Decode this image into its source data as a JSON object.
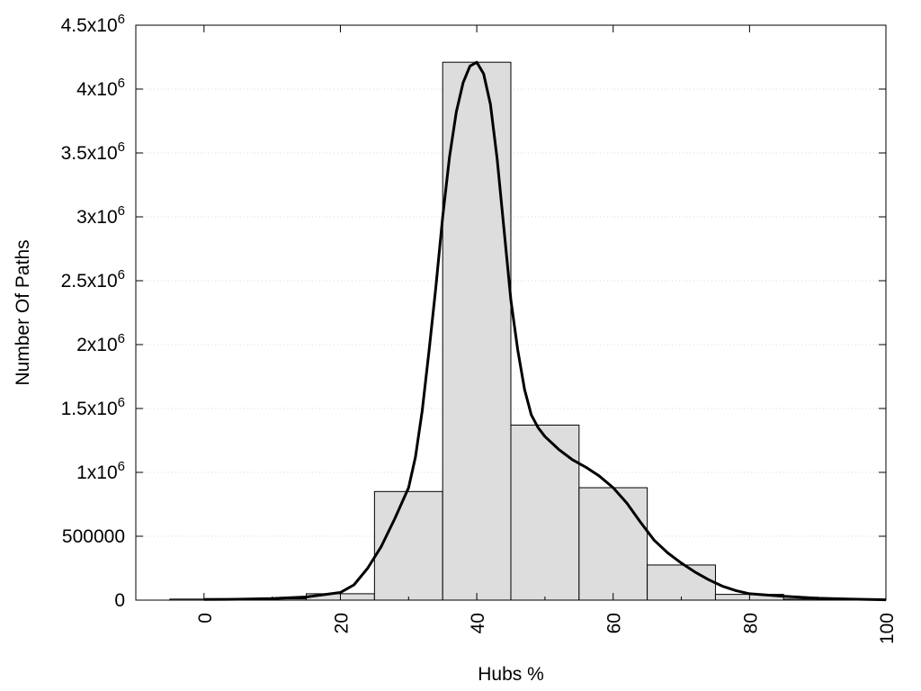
{
  "chart_data": {
    "type": "bar",
    "xlabel": "Hubs %",
    "ylabel": "Number Of Paths",
    "xlim": [
      -10,
      100
    ],
    "ylim": [
      0,
      4500000
    ],
    "grid": "horizontal dotted",
    "legend": "none",
    "x_ticks": [
      {
        "value": 0,
        "label": "0"
      },
      {
        "value": 20,
        "label": "20"
      },
      {
        "value": 40,
        "label": "40"
      },
      {
        "value": 60,
        "label": "60"
      },
      {
        "value": 80,
        "label": "80"
      },
      {
        "value": 100,
        "label": "100"
      }
    ],
    "y_ticks": [
      {
        "value": 0,
        "mantissa": "0",
        "exp": ""
      },
      {
        "value": 500000,
        "mantissa": "500000",
        "exp": ""
      },
      {
        "value": 1000000,
        "mantissa": "1x10",
        "exp": "6"
      },
      {
        "value": 1500000,
        "mantissa": "1.5x10",
        "exp": "6"
      },
      {
        "value": 2000000,
        "mantissa": "2x10",
        "exp": "6"
      },
      {
        "value": 2500000,
        "mantissa": "2.5x10",
        "exp": "6"
      },
      {
        "value": 3000000,
        "mantissa": "3x10",
        "exp": "6"
      },
      {
        "value": 3500000,
        "mantissa": "3.5x10",
        "exp": "6"
      },
      {
        "value": 4000000,
        "mantissa": "4x10",
        "exp": "6"
      },
      {
        "value": 4500000,
        "mantissa": "4.5x10",
        "exp": "6"
      }
    ],
    "bars": [
      {
        "center": 0,
        "width": 10,
        "value": 8000
      },
      {
        "center": 10,
        "width": 10,
        "value": 10000
      },
      {
        "center": 20,
        "width": 10,
        "value": 50000
      },
      {
        "center": 30,
        "width": 10,
        "value": 850000
      },
      {
        "center": 40,
        "width": 10,
        "value": 4210000
      },
      {
        "center": 50,
        "width": 10,
        "value": 1370000
      },
      {
        "center": 60,
        "width": 10,
        "value": 880000
      },
      {
        "center": 70,
        "width": 10,
        "value": 275000
      },
      {
        "center": 80,
        "width": 10,
        "value": 45000
      },
      {
        "center": 90,
        "width": 10,
        "value": 8000
      }
    ],
    "curve": {
      "x": [
        0,
        5,
        10,
        15,
        20,
        22,
        24,
        26,
        28,
        30,
        31,
        32,
        33,
        34,
        35,
        36,
        37,
        38,
        39,
        40,
        41,
        42,
        43,
        44,
        45,
        46,
        47,
        48,
        49,
        50,
        52,
        54,
        56,
        58,
        60,
        62,
        64,
        66,
        68,
        70,
        72,
        74,
        76,
        78,
        80,
        85,
        90,
        95,
        100
      ],
      "y": [
        5000,
        7000,
        12000,
        25000,
        60000,
        120000,
        250000,
        420000,
        640000,
        880000,
        1120000,
        1480000,
        1950000,
        2450000,
        3000000,
        3470000,
        3820000,
        4050000,
        4180000,
        4210000,
        4120000,
        3880000,
        3450000,
        2900000,
        2350000,
        1960000,
        1650000,
        1450000,
        1350000,
        1280000,
        1180000,
        1100000,
        1040000,
        970000,
        880000,
        760000,
        610000,
        470000,
        370000,
        290000,
        220000,
        160000,
        110000,
        75000,
        50000,
        30000,
        15000,
        8000,
        3000
      ]
    },
    "colors": {
      "bar_fill": "#dddddd",
      "bar_stroke": "#000000",
      "curve": "#000000",
      "grid": "#d9d9d9"
    }
  }
}
